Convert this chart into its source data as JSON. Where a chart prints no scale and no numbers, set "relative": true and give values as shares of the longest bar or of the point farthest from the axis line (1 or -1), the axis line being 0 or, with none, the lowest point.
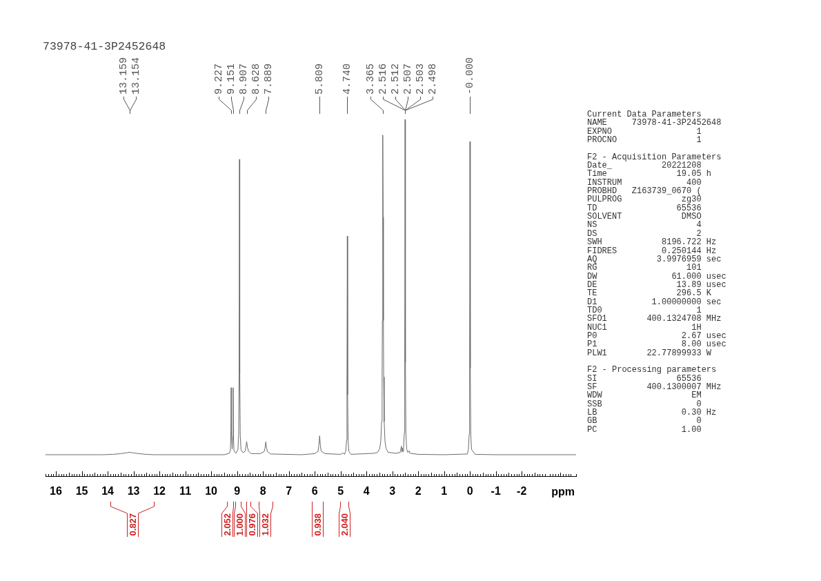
{
  "chart_data": [
    {
      "type": "line",
      "title": "73978-41-3P2452648",
      "xlabel": "ppm",
      "relative": true,
      "xlim": [
        16.4,
        -4.1
      ],
      "xticks": [
        16,
        15,
        14,
        13,
        12,
        11,
        10,
        9,
        8,
        7,
        6,
        5,
        4,
        3,
        2,
        1,
        0,
        -1,
        -2
      ],
      "x": [
        16.4,
        14.2,
        13.8,
        13.5,
        13.3,
        13.159,
        13.0,
        12.8,
        12.5,
        12.2,
        9.5,
        9.3,
        9.257,
        9.24,
        9.227,
        9.214,
        9.189,
        9.164,
        9.151,
        9.138,
        9.121,
        9.05,
        8.967,
        8.937,
        8.92,
        8.907,
        8.894,
        8.877,
        8.847,
        8.8,
        8.75,
        8.69,
        8.658,
        8.628,
        8.598,
        8.56,
        8.45,
        8.1,
        7.95,
        7.919,
        7.889,
        7.859,
        7.83,
        7.7,
        6.5,
        6.0,
        5.87,
        5.839,
        5.809,
        5.779,
        5.75,
        5.6,
        5.0,
        4.9,
        4.85,
        4.8,
        4.77,
        4.753,
        4.74,
        4.727,
        4.71,
        4.68,
        4.64,
        4.6,
        3.7,
        3.565,
        3.485,
        3.445,
        3.415,
        3.395,
        3.385,
        3.375,
        3.365,
        3.355,
        3.345,
        3.335,
        3.315,
        3.285,
        3.245,
        3.165,
        2.9,
        2.7,
        2.648,
        2.63,
        2.613,
        2.59,
        2.567,
        2.537,
        2.52,
        2.507,
        2.494,
        2.477,
        2.447,
        2.4,
        2.35,
        2.32,
        2.0,
        1.0,
        0.1,
        0.06,
        0.03,
        0.013,
        0,
        -0.013,
        -0.03,
        -0.06,
        -0.2,
        -1.0,
        -4.1
      ],
      "series": [
        {
          "color": "#6b6b6b",
          "values": [
            0.06,
            0.06,
            0.061,
            0.063,
            0.065,
            0.067,
            0.065,
            0.063,
            0.061,
            0.06,
            0.06,
            0.064,
            0.072,
            0.112,
            0.248,
            0.112,
            0.076,
            0.112,
            0.248,
            0.112,
            0.072,
            0.064,
            0.074,
            0.115,
            0.287,
            0.888,
            0.287,
            0.115,
            0.074,
            0.068,
            0.066,
            0.07,
            0.081,
            0.097,
            0.081,
            0.07,
            0.063,
            0.063,
            0.069,
            0.079,
            0.096,
            0.079,
            0.069,
            0.062,
            0.06,
            0.063,
            0.07,
            0.086,
            0.113,
            0.086,
            0.07,
            0.063,
            0.061,
            0.065,
            0.061,
            0.07,
            0.1,
            0.228,
            0.673,
            0.228,
            0.1,
            0.07,
            0.065,
            0.061,
            0.064,
            0.067,
            0.078,
            0.099,
            0.153,
            0.278,
            0.436,
            0.726,
            0.956,
            0.726,
            0.436,
            0.278,
            0.153,
            0.099,
            0.078,
            0.067,
            0.064,
            0.066,
            0.084,
            0.067,
            0.079,
            0.069,
            0.076,
            0.122,
            0.319,
            1,
            0.319,
            0.122,
            0.076,
            0.066,
            0.071,
            0.064,
            0.061,
            0.06,
            0.062,
            0.075,
            0.118,
            0.302,
            0.938,
            0.302,
            0.118,
            0.075,
            0.061,
            0.06,
            0.06
          ]
        }
      ],
      "annotations": [
        "13.159",
        "13.154",
        "9.227",
        "9.151",
        "8.907",
        "8.628",
        "7.889",
        "5.809",
        "4.740",
        "3.365",
        "2.516",
        "2.512",
        "2.507",
        "2.503",
        "2.498",
        "-0.000",
        "Current Data Parameters",
        "NAME     73978-41-3P2452648",
        "EXPNO                 1",
        "PROCNO                1",
        "F2 - Acquisition Parameters",
        "Date_          20221208",
        "Time              19.05 h",
        "INSTRUM             400",
        "PROBHD   Z163739_0670 (",
        "PULPROG            zg30",
        "TD                65536",
        "SOLVENT            DMSO",
        "NS                    4",
        "DS                    2",
        "SWH            8196.722 Hz",
        "FIDRES         0.250144 Hz",
        "AQ            3.9976959 sec",
        "RG                  101",
        "DW               61.000 usec",
        "DE                13.89 usec",
        "TE                296.5 K",
        "D1           1.00000000 sec",
        "TD0                   1",
        "SFO1        400.1324708 MHz",
        "NUC1                 1H",
        "P0                 2.67 usec",
        "P1                 8.00 usec",
        "PLW1        22.77899933 W",
        "F2 - Processing parameters",
        "SI                65536",
        "SF          400.1300007 MHz",
        "WDW                  EM",
        "SSB                   0",
        "LB                 0.30 Hz",
        "GB                    0",
        "PC                 1.00"
      ]
    },
    {
      "type": "other",
      "annotations": [
        "0.827",
        "2.052",
        "1.000",
        "0.976",
        "1.032",
        "0.938",
        "2.040"
      ]
    }
  ]
}
